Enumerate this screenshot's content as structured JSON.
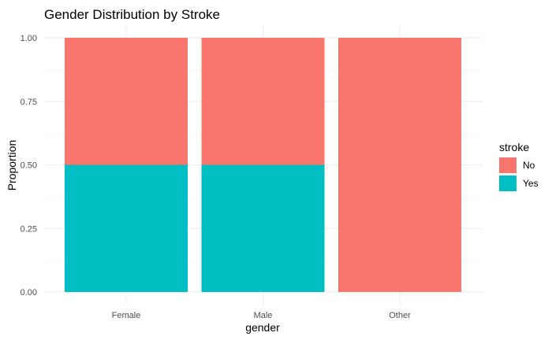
{
  "chart_data": {
    "type": "bar",
    "stacked": true,
    "title": "Gender Distribution by Stroke",
    "xlabel": "gender",
    "ylabel": "Proportion",
    "categories": [
      "Female",
      "Male",
      "Other"
    ],
    "series": [
      {
        "name": "No",
        "color": "#F8766D",
        "values": [
          0.5,
          0.5,
          1.0
        ]
      },
      {
        "name": "Yes",
        "color": "#00BFC4",
        "values": [
          0.5,
          0.5,
          0.0
        ]
      }
    ],
    "ylim": [
      0,
      1
    ],
    "yticks": [
      "0.00",
      "0.25",
      "0.50",
      "0.75",
      "1.00"
    ],
    "grid": true,
    "legend": {
      "title": "stroke",
      "position": "right",
      "entries": [
        "No",
        "Yes"
      ]
    }
  }
}
